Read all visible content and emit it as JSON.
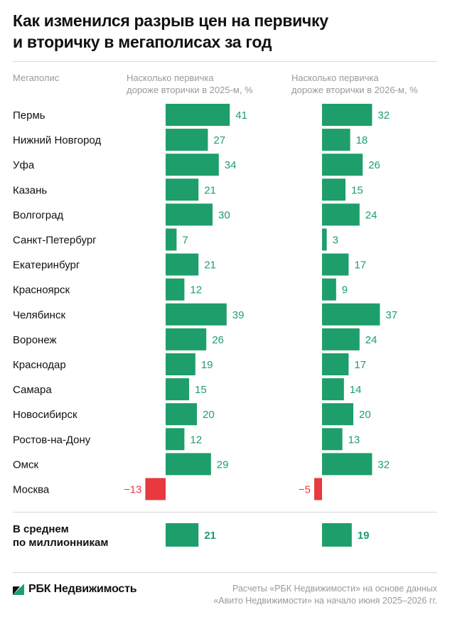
{
  "title": {
    "line1": "Как изменился разрыв цен на первичку",
    "line2": "и вторичку в мегаполисах за год"
  },
  "columns": {
    "city": "Мегаполис",
    "y2025": {
      "line1": "Насколько первичка",
      "line2": "дороже вторички в 2025-м, %"
    },
    "y2026": {
      "line1": "Насколько первичка",
      "line2": "дороже вторички в 2026-м, %"
    }
  },
  "colors": {
    "positive": "#1e9e6a",
    "negative": "#e8393f",
    "label_positive": "#1e9e6a",
    "label_negative": "#e8393f"
  },
  "chart_data": {
    "type": "bar",
    "orientation": "horizontal",
    "categories": [
      "Пермь",
      "Нижний Новгород",
      "Уфа",
      "Казань",
      "Волгоград",
      "Санкт-Петербург",
      "Екатеринбург",
      "Красноярск",
      "Челябинск",
      "Воронеж",
      "Краснодар",
      "Самара",
      "Новосибирск",
      "Ростов-на-Дону",
      "Омск",
      "Москва"
    ],
    "series": [
      {
        "name": "Насколько первичка дороже вторички в 2025-м, %",
        "values": [
          41,
          27,
          34,
          21,
          30,
          7,
          21,
          12,
          39,
          26,
          19,
          15,
          20,
          12,
          29,
          -13
        ]
      },
      {
        "name": "Насколько первичка дороже вторички в 2026-м, %",
        "values": [
          32,
          18,
          26,
          15,
          24,
          3,
          17,
          9,
          37,
          24,
          17,
          14,
          20,
          13,
          32,
          -5
        ]
      }
    ],
    "average": {
      "label_line1": "В среднем",
      "label_line2": "по миллионникам",
      "values": [
        21,
        19
      ]
    },
    "title": "Как изменился разрыв цен на первичку и вторичку в мегаполисах за год",
    "grid": false
  },
  "footer": {
    "brand": "РБК Недвижимость",
    "source_line1": "Расчеты «РБК Недвижимости» на основе данных",
    "source_line2": "«Авито Недвижимости» на начало июня 2025–2026 гг."
  }
}
